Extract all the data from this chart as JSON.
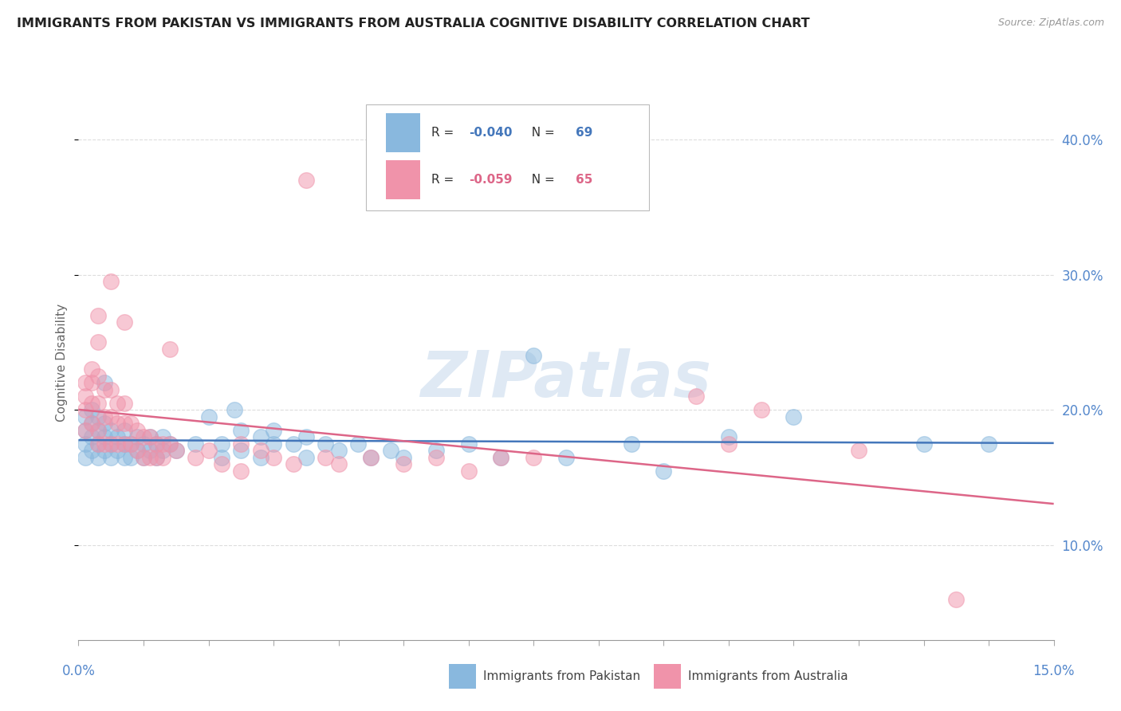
{
  "title": "IMMIGRANTS FROM PAKISTAN VS IMMIGRANTS FROM AUSTRALIA COGNITIVE DISABILITY CORRELATION CHART",
  "source": "Source: ZipAtlas.com",
  "ylabel": "Cognitive Disability",
  "yticks": [
    0.1,
    0.2,
    0.3,
    0.4
  ],
  "ytick_labels": [
    "10.0%",
    "20.0%",
    "30.0%",
    "40.0%"
  ],
  "xlim": [
    0.0,
    0.15
  ],
  "ylim": [
    0.03,
    0.44
  ],
  "pakistan_color": "#89b8de",
  "australia_color": "#f093aa",
  "pakistan_line_color": "#4477bb",
  "australia_line_color": "#dd6688",
  "pakistan_R": -0.04,
  "pakistan_N": 69,
  "australia_R": -0.059,
  "australia_N": 65,
  "watermark": "ZIPatlas",
  "background_color": "#ffffff",
  "grid_color": "#dddddd",
  "pakistan_scatter": [
    [
      0.001,
      0.195
    ],
    [
      0.001,
      0.185
    ],
    [
      0.001,
      0.175
    ],
    [
      0.001,
      0.165
    ],
    [
      0.002,
      0.2
    ],
    [
      0.002,
      0.19
    ],
    [
      0.002,
      0.18
    ],
    [
      0.002,
      0.17
    ],
    [
      0.003,
      0.195
    ],
    [
      0.003,
      0.185
    ],
    [
      0.003,
      0.175
    ],
    [
      0.003,
      0.165
    ],
    [
      0.004,
      0.19
    ],
    [
      0.004,
      0.18
    ],
    [
      0.004,
      0.17
    ],
    [
      0.004,
      0.22
    ],
    [
      0.005,
      0.185
    ],
    [
      0.005,
      0.175
    ],
    [
      0.005,
      0.165
    ],
    [
      0.006,
      0.18
    ],
    [
      0.006,
      0.17
    ],
    [
      0.007,
      0.175
    ],
    [
      0.007,
      0.165
    ],
    [
      0.007,
      0.185
    ],
    [
      0.008,
      0.175
    ],
    [
      0.008,
      0.165
    ],
    [
      0.009,
      0.17
    ],
    [
      0.009,
      0.18
    ],
    [
      0.01,
      0.165
    ],
    [
      0.01,
      0.175
    ],
    [
      0.011,
      0.17
    ],
    [
      0.011,
      0.18
    ],
    [
      0.012,
      0.165
    ],
    [
      0.012,
      0.175
    ],
    [
      0.013,
      0.17
    ],
    [
      0.013,
      0.18
    ],
    [
      0.014,
      0.175
    ],
    [
      0.015,
      0.17
    ],
    [
      0.018,
      0.175
    ],
    [
      0.02,
      0.195
    ],
    [
      0.022,
      0.175
    ],
    [
      0.022,
      0.165
    ],
    [
      0.024,
      0.2
    ],
    [
      0.025,
      0.185
    ],
    [
      0.025,
      0.17
    ],
    [
      0.028,
      0.18
    ],
    [
      0.028,
      0.165
    ],
    [
      0.03,
      0.175
    ],
    [
      0.03,
      0.185
    ],
    [
      0.033,
      0.175
    ],
    [
      0.035,
      0.18
    ],
    [
      0.035,
      0.165
    ],
    [
      0.038,
      0.175
    ],
    [
      0.04,
      0.17
    ],
    [
      0.043,
      0.175
    ],
    [
      0.045,
      0.165
    ],
    [
      0.048,
      0.17
    ],
    [
      0.05,
      0.165
    ],
    [
      0.055,
      0.17
    ],
    [
      0.06,
      0.175
    ],
    [
      0.065,
      0.165
    ],
    [
      0.07,
      0.24
    ],
    [
      0.075,
      0.165
    ],
    [
      0.085,
      0.175
    ],
    [
      0.09,
      0.155
    ],
    [
      0.1,
      0.18
    ],
    [
      0.11,
      0.195
    ],
    [
      0.13,
      0.175
    ],
    [
      0.14,
      0.175
    ]
  ],
  "australia_scatter": [
    [
      0.001,
      0.22
    ],
    [
      0.001,
      0.21
    ],
    [
      0.001,
      0.2
    ],
    [
      0.001,
      0.185
    ],
    [
      0.002,
      0.23
    ],
    [
      0.002,
      0.22
    ],
    [
      0.002,
      0.205
    ],
    [
      0.002,
      0.19
    ],
    [
      0.003,
      0.27
    ],
    [
      0.003,
      0.25
    ],
    [
      0.003,
      0.225
    ],
    [
      0.003,
      0.205
    ],
    [
      0.003,
      0.185
    ],
    [
      0.003,
      0.175
    ],
    [
      0.004,
      0.215
    ],
    [
      0.004,
      0.195
    ],
    [
      0.004,
      0.175
    ],
    [
      0.005,
      0.295
    ],
    [
      0.005,
      0.215
    ],
    [
      0.005,
      0.195
    ],
    [
      0.005,
      0.175
    ],
    [
      0.006,
      0.205
    ],
    [
      0.006,
      0.19
    ],
    [
      0.006,
      0.175
    ],
    [
      0.007,
      0.265
    ],
    [
      0.007,
      0.205
    ],
    [
      0.007,
      0.19
    ],
    [
      0.007,
      0.175
    ],
    [
      0.008,
      0.19
    ],
    [
      0.008,
      0.175
    ],
    [
      0.009,
      0.185
    ],
    [
      0.009,
      0.17
    ],
    [
      0.01,
      0.18
    ],
    [
      0.01,
      0.165
    ],
    [
      0.011,
      0.18
    ],
    [
      0.011,
      0.165
    ],
    [
      0.012,
      0.175
    ],
    [
      0.012,
      0.165
    ],
    [
      0.013,
      0.175
    ],
    [
      0.013,
      0.165
    ],
    [
      0.014,
      0.175
    ],
    [
      0.014,
      0.245
    ],
    [
      0.015,
      0.17
    ],
    [
      0.018,
      0.165
    ],
    [
      0.02,
      0.17
    ],
    [
      0.022,
      0.16
    ],
    [
      0.025,
      0.175
    ],
    [
      0.025,
      0.155
    ],
    [
      0.028,
      0.17
    ],
    [
      0.03,
      0.165
    ],
    [
      0.033,
      0.16
    ],
    [
      0.035,
      0.37
    ],
    [
      0.038,
      0.165
    ],
    [
      0.04,
      0.16
    ],
    [
      0.045,
      0.165
    ],
    [
      0.05,
      0.16
    ],
    [
      0.055,
      0.165
    ],
    [
      0.06,
      0.155
    ],
    [
      0.065,
      0.165
    ],
    [
      0.07,
      0.165
    ],
    [
      0.095,
      0.21
    ],
    [
      0.1,
      0.175
    ],
    [
      0.105,
      0.2
    ],
    [
      0.12,
      0.17
    ],
    [
      0.135,
      0.06
    ]
  ]
}
